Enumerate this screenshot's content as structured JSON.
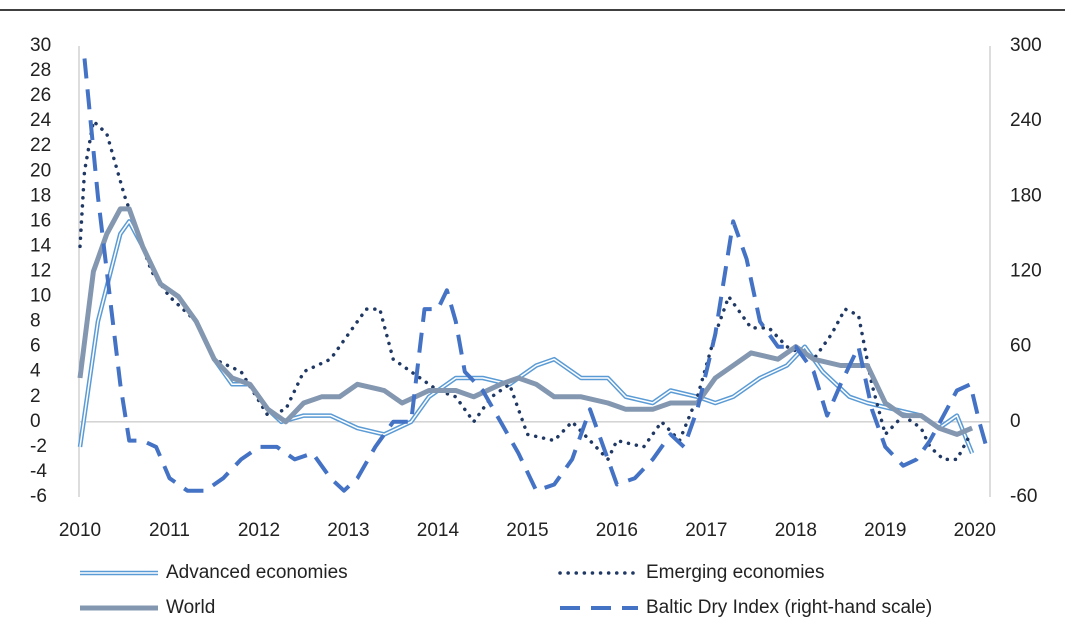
{
  "chart_data": {
    "type": "line",
    "xlim": [
      2010,
      2020.17
    ],
    "xticks": [
      2010,
      2011,
      2012,
      2013,
      2014,
      2015,
      2016,
      2017,
      2018,
      2019,
      2020
    ],
    "ylim": [
      -6,
      30
    ],
    "yticks": [
      -6,
      -4,
      -2,
      0,
      2,
      4,
      6,
      8,
      10,
      12,
      14,
      16,
      18,
      20,
      22,
      24,
      26,
      28,
      30
    ],
    "y2lim": [
      -60,
      300
    ],
    "y2ticks": [
      -60,
      0,
      60,
      120,
      180,
      240,
      300
    ],
    "grid": false,
    "series": [
      {
        "name": "Advanced economies",
        "color": "#5b9bd5",
        "style": "double",
        "x": [
          2010,
          2010.2,
          2010.45,
          2010.55,
          2010.7,
          2010.9,
          2011.1,
          2011.3,
          2011.5,
          2011.7,
          2011.9,
          2012.1,
          2012.25,
          2012.5,
          2012.8,
          2013.1,
          2013.4,
          2013.7,
          2013.9,
          2014.2,
          2014.5,
          2014.8,
          2015.1,
          2015.3,
          2015.6,
          2015.9,
          2016.1,
          2016.4,
          2016.6,
          2016.9,
          2017.1,
          2017.3,
          2017.6,
          2017.9,
          2018.1,
          2018.3,
          2018.6,
          2018.8,
          2019.1,
          2019.4,
          2019.6,
          2019.8,
          2019.97
        ],
        "values": [
          -2,
          8,
          15,
          16,
          14,
          11,
          10,
          8,
          5,
          3,
          3,
          1,
          0,
          0.5,
          0.5,
          -0.5,
          -1,
          0,
          2,
          3.5,
          3.5,
          3,
          4.5,
          5,
          3.5,
          3.5,
          2,
          1.5,
          2.5,
          2,
          1.5,
          2,
          3.5,
          4.5,
          6,
          4,
          2,
          1.5,
          1,
          0.5,
          -0.5,
          0.5,
          -2.5
        ]
      },
      {
        "name": "Emerging economies",
        "color": "#1f3864",
        "style": "dotted",
        "x": [
          2010,
          2010.05,
          2010.15,
          2010.3,
          2010.5,
          2010.8,
          2011.0,
          2011.3,
          2011.5,
          2011.8,
          2012.1,
          2012.3,
          2012.5,
          2012.8,
          2013.0,
          2013.2,
          2013.35,
          2013.5,
          2013.7,
          2014.0,
          2014.2,
          2014.4,
          2014.6,
          2014.8,
          2015.0,
          2015.3,
          2015.5,
          2015.7,
          2015.9,
          2016.0,
          2016.3,
          2016.5,
          2016.7,
          2016.9,
          2017.1,
          2017.25,
          2017.5,
          2017.7,
          2017.9,
          2018.2,
          2018.4,
          2018.55,
          2018.7,
          2018.85,
          2019.0,
          2019.2,
          2019.4,
          2019.5,
          2019.65,
          2019.8,
          2019.95
        ],
        "values": [
          14,
          20,
          24,
          23,
          18,
          12,
          10,
          8,
          5,
          4,
          0.5,
          1,
          4,
          5,
          7,
          9,
          9,
          5,
          4,
          2.5,
          2,
          0,
          2,
          3,
          -1,
          -1.5,
          0,
          -1.5,
          -3,
          -1.5,
          -2,
          0,
          -1.5,
          2,
          7,
          10,
          7.5,
          7.5,
          6,
          5,
          7,
          9,
          8.5,
          3,
          -1,
          0.5,
          -0.5,
          -2,
          -3,
          -3,
          -1
        ]
      },
      {
        "name": "World",
        "color": "#8497b0",
        "style": "thick",
        "x": [
          2010,
          2010.15,
          2010.3,
          2010.45,
          2010.55,
          2010.7,
          2010.9,
          2011.1,
          2011.3,
          2011.5,
          2011.7,
          2011.9,
          2012.1,
          2012.3,
          2012.5,
          2012.7,
          2012.9,
          2013.1,
          2013.4,
          2013.6,
          2013.9,
          2014.2,
          2014.4,
          2014.7,
          2014.9,
          2015.1,
          2015.3,
          2015.6,
          2015.9,
          2016.1,
          2016.4,
          2016.6,
          2016.9,
          2017.1,
          2017.3,
          2017.5,
          2017.8,
          2018.0,
          2018.2,
          2018.5,
          2018.8,
          2019.0,
          2019.2,
          2019.4,
          2019.6,
          2019.8,
          2019.97
        ],
        "values": [
          3.5,
          12,
          15,
          17,
          17,
          14,
          11,
          10,
          8,
          5,
          3.5,
          3,
          1,
          0,
          1.5,
          2,
          2,
          3,
          2.5,
          1.5,
          2.5,
          2.5,
          2,
          3,
          3.5,
          3,
          2,
          2,
          1.5,
          1,
          1,
          1.5,
          1.5,
          3.5,
          4.5,
          5.5,
          5,
          6,
          5,
          4.5,
          4.5,
          1.5,
          0.5,
          0.5,
          -0.5,
          -1,
          -0.5
        ]
      },
      {
        "name": "Baltic Dry Index (right-hand scale)",
        "color": "#4472c4",
        "style": "dashed",
        "axis": "y2",
        "x": [
          2010.05,
          2010.2,
          2010.35,
          2010.45,
          2010.55,
          2010.7,
          2010.85,
          2011.0,
          2011.2,
          2011.4,
          2011.6,
          2011.8,
          2012.0,
          2012.2,
          2012.4,
          2012.6,
          2012.8,
          2012.95,
          2013.1,
          2013.3,
          2013.5,
          2013.7,
          2013.85,
          2014.0,
          2014.1,
          2014.2,
          2014.3,
          2014.5,
          2014.7,
          2014.9,
          2015.1,
          2015.3,
          2015.5,
          2015.7,
          2015.9,
          2016.0,
          2016.2,
          2016.4,
          2016.6,
          2016.75,
          2016.9,
          2017.1,
          2017.3,
          2017.45,
          2017.6,
          2017.8,
          2018.0,
          2018.2,
          2018.35,
          2018.5,
          2018.7,
          2018.85,
          2019.0,
          2019.2,
          2019.35,
          2019.5,
          2019.65,
          2019.8,
          2019.95,
          2020.05,
          2020.15
        ],
        "values": [
          290,
          180,
          90,
          30,
          -15,
          -15,
          -20,
          -45,
          -55,
          -55,
          -45,
          -30,
          -20,
          -20,
          -30,
          -25,
          -45,
          -55,
          -45,
          -20,
          0,
          0,
          90,
          90,
          105,
          80,
          40,
          25,
          0,
          -25,
          -55,
          -50,
          -30,
          10,
          -30,
          -50,
          -45,
          -30,
          -10,
          -20,
          10,
          70,
          160,
          130,
          80,
          60,
          60,
          40,
          5,
          30,
          60,
          10,
          -20,
          -35,
          -30,
          -15,
          5,
          25,
          30,
          0,
          -25
        ]
      }
    ]
  }
}
